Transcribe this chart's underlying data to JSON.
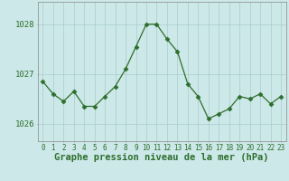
{
  "hours": [
    0,
    1,
    2,
    3,
    4,
    5,
    6,
    7,
    8,
    9,
    10,
    11,
    12,
    13,
    14,
    15,
    16,
    17,
    18,
    19,
    20,
    21,
    22,
    23
  ],
  "pressure": [
    1026.85,
    1026.6,
    1026.45,
    1026.65,
    1026.35,
    1026.35,
    1026.55,
    1026.75,
    1027.1,
    1027.55,
    1028.0,
    1028.0,
    1027.7,
    1027.45,
    1026.8,
    1026.55,
    1026.1,
    1026.2,
    1026.3,
    1026.55,
    1026.5,
    1026.6,
    1026.4,
    1026.55
  ],
  "line_color": "#2d6e2d",
  "marker": "D",
  "marker_size": 2.5,
  "bg_color": "#cce8e8",
  "grid_color": "#aacccc",
  "xlabel": "Graphe pression niveau de la mer (hPa)",
  "xlabel_fontsize": 7.5,
  "ytick_labels": [
    1026,
    1027,
    1028
  ],
  "ylim": [
    1025.65,
    1028.45
  ],
  "xlim": [
    -0.5,
    23.5
  ],
  "xtick_fontsize": 5.5,
  "ytick_fontsize": 6.5
}
